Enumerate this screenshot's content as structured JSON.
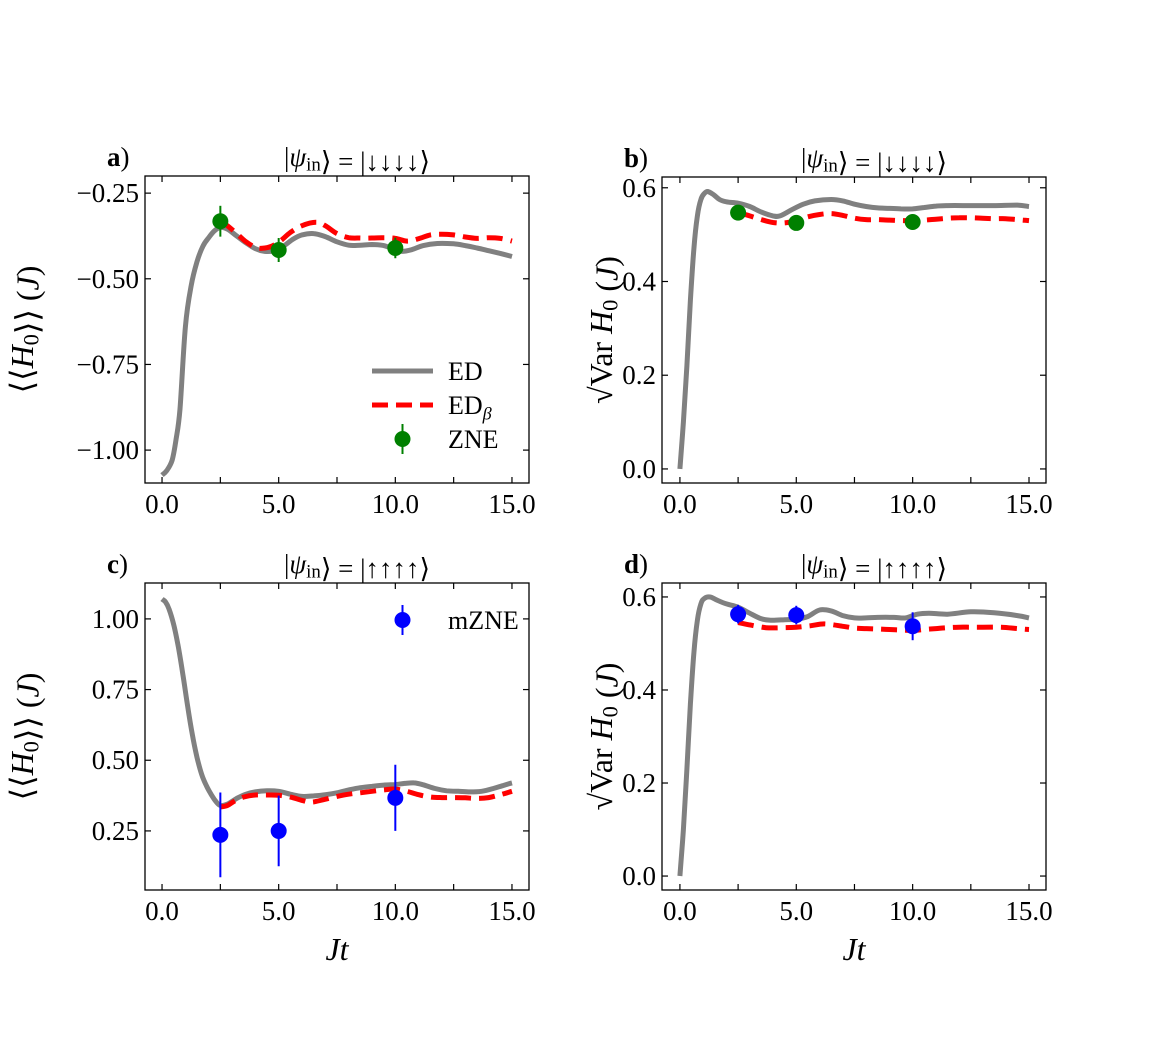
{
  "chart_data": [
    {
      "id": "a",
      "type": "line",
      "panel_label": "a)",
      "title": "|ψin⟩ = |↓↓↓↓⟩",
      "xlabel": "",
      "ylabel": "⟨⟨H0⟩⟩ (J)",
      "xlim": [
        -0.73,
        15.73
      ],
      "ylim": [
        -1.096,
        -0.2
      ],
      "xticks": [
        0,
        2.5,
        5,
        7.5,
        10,
        12.5,
        15
      ],
      "xtick_labels": [
        {
          "v": 0,
          "t": "0.0"
        },
        {
          "v": 5,
          "t": "5.0"
        },
        {
          "v": 10,
          "t": "10.0"
        },
        {
          "v": 15,
          "t": "15.0"
        }
      ],
      "yticks": [
        {
          "v": -0.25,
          "t": "−0.25"
        },
        {
          "v": -0.5,
          "t": "−0.50"
        },
        {
          "v": -0.75,
          "t": "−0.75"
        },
        {
          "v": -1.0,
          "t": "−1.00"
        }
      ],
      "grid": false,
      "legend": {
        "position": "lower-right",
        "entries": [
          {
            "label": "ED",
            "kind": "line",
            "color": "#808080"
          },
          {
            "label": "EDβ",
            "kind": "dashed",
            "color": "#ff0000"
          },
          {
            "label": "ZNE",
            "kind": "point",
            "color": "#008000"
          }
        ]
      },
      "series": [
        {
          "name": "ED",
          "style": "solid",
          "color": "#808080",
          "x": [
            0,
            0.2,
            0.43,
            0.6,
            0.77,
            1.0,
            1.25,
            1.5,
            1.75,
            2.0,
            2.25,
            2.5,
            2.8,
            3.2,
            3.6,
            4.0,
            4.4,
            4.8,
            5.2,
            5.6,
            6.0,
            6.5,
            7.0,
            7.5,
            8.0,
            8.5,
            9.0,
            9.5,
            10.0,
            10.3,
            10.7,
            11.2,
            11.8,
            12.5,
            13.0,
            13.5,
            14.0,
            14.5,
            15.0
          ],
          "y": [
            -1.073,
            -1.06,
            -1.03,
            -0.97,
            -0.88,
            -0.64,
            -0.52,
            -0.45,
            -0.405,
            -0.38,
            -0.36,
            -0.35,
            -0.355,
            -0.375,
            -0.395,
            -0.412,
            -0.42,
            -0.418,
            -0.405,
            -0.385,
            -0.372,
            -0.368,
            -0.377,
            -0.392,
            -0.402,
            -0.402,
            -0.4,
            -0.403,
            -0.415,
            -0.42,
            -0.415,
            -0.403,
            -0.397,
            -0.398,
            -0.403,
            -0.41,
            -0.418,
            -0.426,
            -0.435
          ]
        },
        {
          "name": "EDβ",
          "style": "dashed",
          "color": "#ff0000",
          "x": [
            2.5,
            2.8,
            3.2,
            3.6,
            4.0,
            4.3,
            4.7,
            5.1,
            5.5,
            6.0,
            6.6,
            7.0,
            7.5,
            8.0,
            8.5,
            9.0,
            9.5,
            10.0,
            10.5,
            11.0,
            11.5,
            12.0,
            12.5,
            13.0,
            13.5,
            14.0,
            14.5,
            15.0
          ],
          "y": [
            -0.332,
            -0.345,
            -0.368,
            -0.392,
            -0.408,
            -0.411,
            -0.405,
            -0.388,
            -0.365,
            -0.345,
            -0.335,
            -0.345,
            -0.368,
            -0.38,
            -0.381,
            -0.381,
            -0.38,
            -0.382,
            -0.39,
            -0.383,
            -0.372,
            -0.37,
            -0.372,
            -0.378,
            -0.382,
            -0.38,
            -0.382,
            -0.39
          ]
        }
      ],
      "points": {
        "name": "ZNE",
        "color": "#008000",
        "x": [
          2.5,
          5.0,
          10.0
        ],
        "y": [
          -0.332,
          -0.416,
          -0.41
        ],
        "yerr": [
          0.045,
          0.035,
          0.03
        ]
      }
    },
    {
      "id": "b",
      "type": "line",
      "panel_label": "b)",
      "title": "|ψin⟩ = |↓↓↓↓⟩",
      "xlabel": "",
      "ylabel": "√Var H0 (J)",
      "xlim": [
        -0.77,
        15.73
      ],
      "ylim": [
        -0.03,
        0.623
      ],
      "xticks": [
        0,
        2.5,
        5,
        7.5,
        10,
        12.5,
        15
      ],
      "xtick_labels": [
        {
          "v": 0,
          "t": "0.0"
        },
        {
          "v": 5,
          "t": "5.0"
        },
        {
          "v": 10,
          "t": "10.0"
        },
        {
          "v": 15,
          "t": "15.0"
        }
      ],
      "yticks": [
        {
          "v": 0.0,
          "t": "0.0"
        },
        {
          "v": 0.2,
          "t": "0.2"
        },
        {
          "v": 0.4,
          "t": "0.4"
        },
        {
          "v": 0.6,
          "t": "0.6"
        }
      ],
      "grid": false,
      "series": [
        {
          "name": "ED",
          "style": "solid",
          "color": "#808080",
          "x": [
            0,
            0.15,
            0.3,
            0.45,
            0.6,
            0.75,
            0.9,
            1.05,
            1.2,
            1.45,
            1.7,
            2.0,
            2.5,
            3.0,
            3.5,
            4.0,
            4.3,
            4.8,
            5.3,
            5.8,
            6.5,
            7.0,
            7.5,
            8.0,
            8.5,
            9.0,
            9.5,
            10.0,
            10.5,
            11.0,
            11.5,
            12.5,
            13.5,
            14.5,
            15.0
          ],
          "y": [
            0.0,
            0.1,
            0.22,
            0.36,
            0.47,
            0.54,
            0.575,
            0.588,
            0.592,
            0.585,
            0.575,
            0.57,
            0.567,
            0.56,
            0.548,
            0.54,
            0.54,
            0.553,
            0.565,
            0.572,
            0.575,
            0.572,
            0.565,
            0.56,
            0.557,
            0.556,
            0.555,
            0.555,
            0.558,
            0.561,
            0.562,
            0.562,
            0.562,
            0.563,
            0.56
          ]
        },
        {
          "name": "EDβ",
          "style": "dashed",
          "color": "#ff0000",
          "x": [
            2.5,
            3.0,
            3.5,
            4.0,
            4.5,
            5.0,
            5.5,
            6.0,
            6.5,
            7.0,
            7.5,
            8.0,
            8.5,
            9.0,
            9.5,
            10.0,
            10.5,
            11.0,
            11.5,
            12.0,
            12.5,
            13.0,
            13.5,
            14.0,
            14.5,
            15.0
          ],
          "y": [
            0.547,
            0.54,
            0.532,
            0.526,
            0.525,
            0.53,
            0.538,
            0.543,
            0.545,
            0.541,
            0.535,
            0.532,
            0.532,
            0.531,
            0.53,
            0.53,
            0.531,
            0.533,
            0.535,
            0.536,
            0.536,
            0.535,
            0.534,
            0.534,
            0.532,
            0.53
          ]
        }
      ],
      "points": {
        "name": "ZNE",
        "color": "#008000",
        "x": [
          2.5,
          5.0,
          10.0
        ],
        "y": [
          0.547,
          0.525,
          0.527
        ],
        "yerr": [
          0.005,
          0.005,
          0.005
        ]
      }
    },
    {
      "id": "c",
      "type": "line",
      "panel_label": "c)",
      "title": "|ψin⟩ = |↑↑↑↑⟩",
      "xlabel": "Jt",
      "ylabel": "⟨⟨H0⟩⟩ (J)",
      "xlim": [
        -0.73,
        15.73
      ],
      "ylim": [
        0.041,
        1.127
      ],
      "xticks": [
        0,
        2.5,
        5,
        7.5,
        10,
        12.5,
        15
      ],
      "xtick_labels": [
        {
          "v": 0,
          "t": "0.0"
        },
        {
          "v": 5,
          "t": "5.0"
        },
        {
          "v": 10,
          "t": "10.0"
        },
        {
          "v": 15,
          "t": "15.0"
        }
      ],
      "yticks": [
        {
          "v": 0.25,
          "t": "0.25"
        },
        {
          "v": 0.5,
          "t": "0.50"
        },
        {
          "v": 0.75,
          "t": "0.75"
        },
        {
          "v": 1.0,
          "t": "1.00"
        }
      ],
      "grid": false,
      "legend": {
        "position": "upper-right",
        "entries": [
          {
            "label": "mZNE",
            "kind": "point",
            "color": "#0000ff"
          }
        ]
      },
      "series": [
        {
          "name": "ED",
          "style": "solid",
          "color": "#808080",
          "x": [
            0,
            0.15,
            0.3,
            0.5,
            0.7,
            0.9,
            1.1,
            1.3,
            1.5,
            1.7,
            1.9,
            2.1,
            2.3,
            2.5,
            2.8,
            3.2,
            3.6,
            4.0,
            4.5,
            5.0,
            5.5,
            6.0,
            6.5,
            7.0,
            7.5,
            8.0,
            8.5,
            9.0,
            9.5,
            10.0,
            10.4,
            10.8,
            11.2,
            11.7,
            12.2,
            12.7,
            13.2,
            13.7,
            14.2,
            14.6,
            15.0
          ],
          "y": [
            1.07,
            1.06,
            1.035,
            0.98,
            0.9,
            0.8,
            0.69,
            0.59,
            0.51,
            0.45,
            0.41,
            0.38,
            0.355,
            0.34,
            0.345,
            0.365,
            0.38,
            0.388,
            0.392,
            0.39,
            0.38,
            0.372,
            0.374,
            0.378,
            0.385,
            0.395,
            0.403,
            0.408,
            0.412,
            0.414,
            0.418,
            0.42,
            0.413,
            0.4,
            0.392,
            0.39,
            0.388,
            0.39,
            0.4,
            0.41,
            0.42
          ]
        },
        {
          "name": "EDβ",
          "style": "dashed",
          "color": "#ff0000",
          "x": [
            2.5,
            2.8,
            3.1,
            3.5,
            4.0,
            4.5,
            5.0,
            5.5,
            6.0,
            6.4,
            6.9,
            7.5,
            8.0,
            8.5,
            9.0,
            9.5,
            10.0,
            10.5,
            11.0,
            11.5,
            12.0,
            12.5,
            13.0,
            13.5,
            14.0,
            14.5,
            15.0
          ],
          "y": [
            0.335,
            0.34,
            0.355,
            0.37,
            0.377,
            0.377,
            0.376,
            0.37,
            0.358,
            0.352,
            0.36,
            0.372,
            0.38,
            0.385,
            0.39,
            0.395,
            0.398,
            0.39,
            0.378,
            0.37,
            0.368,
            0.368,
            0.367,
            0.365,
            0.368,
            0.378,
            0.39
          ]
        }
      ],
      "points": {
        "name": "mZNE",
        "color": "#0000ff",
        "x": [
          2.5,
          5.0,
          10.0
        ],
        "y": [
          0.236,
          0.25,
          0.367
        ],
        "yerr": [
          0.15,
          0.125,
          0.117
        ]
      }
    },
    {
      "id": "d",
      "type": "line",
      "panel_label": "d)",
      "title": "|ψin⟩ = |↑↑↑↑⟩",
      "xlabel": "Jt",
      "ylabel": "√Var H0 (J)",
      "xlim": [
        -0.77,
        15.73
      ],
      "ylim": [
        -0.03,
        0.63
      ],
      "xticks": [
        0,
        2.5,
        5,
        7.5,
        10,
        12.5,
        15
      ],
      "xtick_labels": [
        {
          "v": 0,
          "t": "0.0"
        },
        {
          "v": 5,
          "t": "5.0"
        },
        {
          "v": 10,
          "t": "10.0"
        },
        {
          "v": 15,
          "t": "15.0"
        }
      ],
      "yticks": [
        {
          "v": 0.0,
          "t": "0.0"
        },
        {
          "v": 0.2,
          "t": "0.2"
        },
        {
          "v": 0.4,
          "t": "0.4"
        },
        {
          "v": 0.6,
          "t": "0.6"
        }
      ],
      "grid": false,
      "series": [
        {
          "name": "ED",
          "style": "solid",
          "color": "#808080",
          "x": [
            0,
            0.15,
            0.3,
            0.45,
            0.6,
            0.75,
            0.9,
            1.05,
            1.3,
            1.6,
            2.0,
            2.5,
            3.0,
            3.5,
            3.9,
            4.5,
            5.0,
            5.5,
            6.0,
            6.5,
            7.0,
            7.5,
            8.0,
            8.5,
            9.2,
            9.7,
            10.2,
            10.7,
            11.5,
            12.5,
            13.5,
            14.5,
            15.0
          ],
          "y": [
            0.0,
            0.1,
            0.23,
            0.37,
            0.48,
            0.55,
            0.585,
            0.597,
            0.6,
            0.593,
            0.585,
            0.578,
            0.565,
            0.553,
            0.55,
            0.551,
            0.552,
            0.558,
            0.572,
            0.57,
            0.56,
            0.555,
            0.555,
            0.556,
            0.556,
            0.555,
            0.563,
            0.565,
            0.563,
            0.568,
            0.566,
            0.56,
            0.555
          ]
        },
        {
          "name": "EDβ",
          "style": "dashed",
          "color": "#ff0000",
          "x": [
            2.5,
            3.0,
            3.7,
            4.5,
            5.0,
            5.6,
            6.2,
            7.0,
            7.5,
            8.0,
            8.5,
            9.0,
            9.5,
            10.0,
            10.5,
            11.0,
            11.5,
            12.0,
            12.5,
            13.0,
            13.8,
            14.5,
            15.0
          ],
          "y": [
            0.545,
            0.54,
            0.534,
            0.534,
            0.535,
            0.538,
            0.542,
            0.537,
            0.533,
            0.532,
            0.531,
            0.53,
            0.529,
            0.528,
            0.53,
            0.532,
            0.534,
            0.535,
            0.535,
            0.535,
            0.535,
            0.532,
            0.53
          ]
        }
      ],
      "points": {
        "name": "mZNE",
        "color": "#0000ff",
        "x": [
          2.5,
          5.0,
          10.0
        ],
        "y": [
          0.563,
          0.561,
          0.537
        ],
        "yerr": [
          0.02,
          0.02,
          0.03
        ]
      }
    }
  ]
}
